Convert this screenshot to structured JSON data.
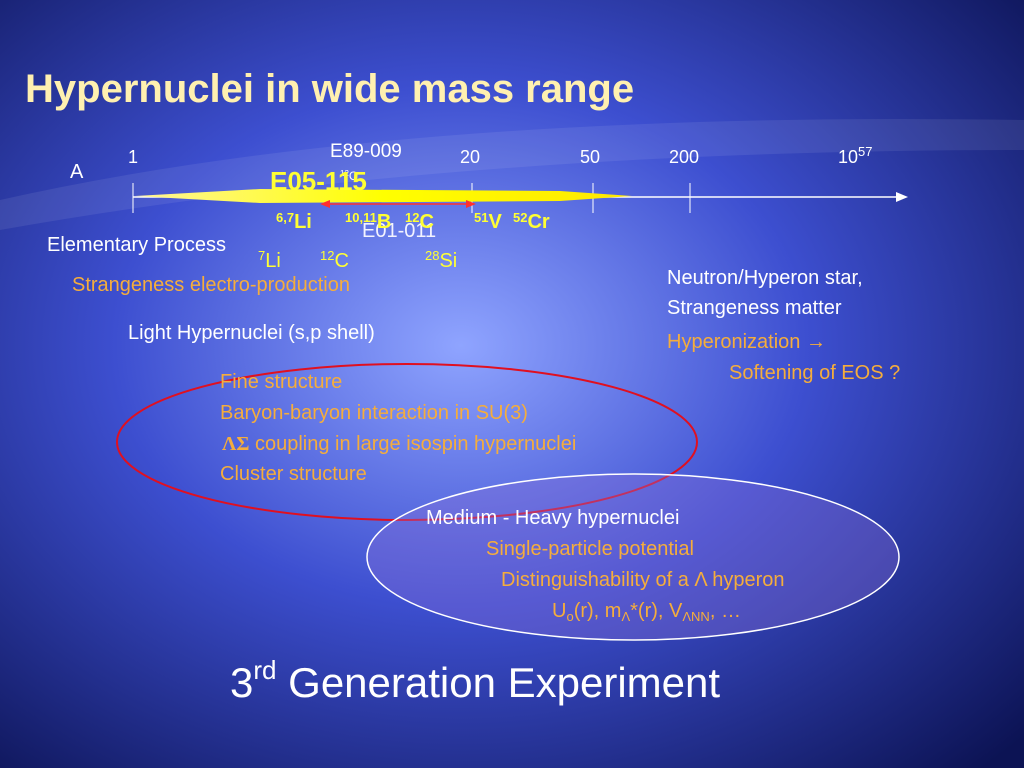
{
  "title": "Hypernuclei  in wide mass range",
  "axis": {
    "label": "A",
    "ticks": [
      "1",
      "20",
      "50",
      "200",
      {
        "base": "10",
        "sup": "57"
      }
    ]
  },
  "experiments": {
    "e89": {
      "name": "E89-009",
      "target": {
        "sup": "12",
        "sym": "C"
      }
    },
    "e05": {
      "name": "E05-115"
    },
    "e01": {
      "name": "E01-011"
    }
  },
  "targets": [
    {
      "sup": "6,7",
      "sym": "Li"
    },
    {
      "sup": "10,11",
      "sym": "B"
    },
    {
      "sup": "12",
      "sym": "C"
    },
    {
      "sup": "51",
      "sym": "V"
    },
    {
      "sup": "52",
      "sym": "Cr"
    }
  ],
  "elementary": {
    "label": "Elementary Process",
    "topic": "Strangeness electro-production",
    "targets": [
      {
        "sup": "7",
        "sym": "Li"
      },
      {
        "sup": "12",
        "sym": "C"
      },
      {
        "sup": "28",
        "sym": "Si"
      }
    ]
  },
  "light": {
    "label": "Light Hypernuclei (s,p shell)",
    "items": [
      "Fine structure",
      "Baryon-baryon interaction in SU(3)",
      {
        "symbol": "ΛΣ",
        "text": " coupling in large isospin hypernuclei"
      },
      "Cluster structure"
    ]
  },
  "star": {
    "lines": [
      "Neutron/Hyperon star,",
      "Strangeness matter"
    ],
    "items": [
      "Hyperonization →",
      "Softening of EOS ?"
    ]
  },
  "medium": {
    "label": "Medium - Heavy hypernuclei",
    "items": [
      "Single-particle potential",
      "Distinguishability of a Λ hyperon"
    ],
    "formula": [
      "U",
      "o",
      "(r), m",
      "Λ",
      "*(r), V",
      "ΛNN",
      ", …"
    ]
  },
  "footer": {
    "base": "3",
    "sup": "rd",
    "text": " Generation Experiment"
  }
}
